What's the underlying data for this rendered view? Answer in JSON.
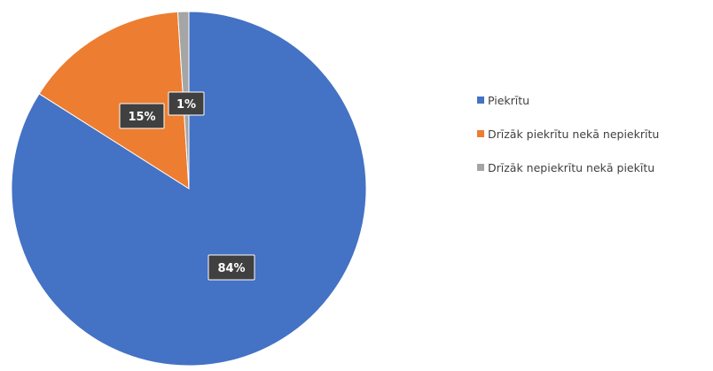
{
  "chart_data": {
    "type": "pie",
    "categories": [
      "Piekrītu",
      "Drīzāk piekrītu nekā nepiekrītu",
      "Drīzāk nepiekrītu nekā piekītu"
    ],
    "values": [
      84,
      15,
      1
    ],
    "data_labels": [
      "84%",
      "15%",
      "1%"
    ],
    "colors": [
      "#4472C4",
      "#ED7D31",
      "#A5A5A5"
    ],
    "legend_position": "right",
    "start_angle_deg": 0,
    "direction": "clockwise"
  }
}
